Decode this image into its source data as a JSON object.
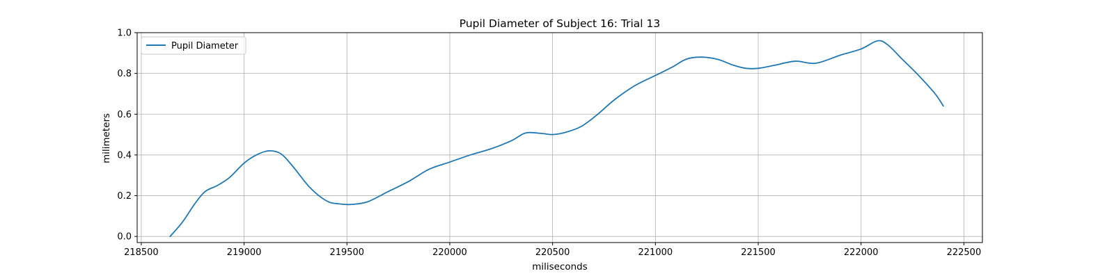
{
  "chart_data": {
    "type": "line",
    "title": "Pupil Diameter of Subject 16: Trial 13",
    "xlabel": "miliseconds",
    "ylabel": "milimeters",
    "xlim": [
      218480,
      222590
    ],
    "ylim": [
      -0.03,
      1.0
    ],
    "xticks": [
      218500,
      219000,
      219500,
      220000,
      220500,
      221000,
      221500,
      222000,
      222500
    ],
    "yticks": [
      0.0,
      0.2,
      0.4,
      0.6,
      0.8,
      1.0
    ],
    "grid": true,
    "legend_position": "top-left",
    "series": [
      {
        "name": "Pupil Diameter",
        "color": "#1f77b4",
        "x": [
          218640,
          218700,
          218760,
          218810,
          218870,
          218930,
          219000,
          219060,
          219120,
          219180,
          219240,
          219320,
          219400,
          219460,
          219520,
          219600,
          219700,
          219800,
          219900,
          220000,
          220100,
          220200,
          220300,
          220370,
          220450,
          220500,
          220560,
          220640,
          220720,
          220800,
          220900,
          221000,
          221080,
          221150,
          221220,
          221300,
          221380,
          221440,
          221500,
          221580,
          221680,
          221780,
          221900,
          222000,
          222080,
          222130,
          222200,
          222280,
          222360,
          222400
        ],
        "y": [
          0.0,
          0.07,
          0.16,
          0.22,
          0.25,
          0.29,
          0.36,
          0.4,
          0.42,
          0.405,
          0.34,
          0.24,
          0.175,
          0.16,
          0.157,
          0.17,
          0.22,
          0.27,
          0.33,
          0.365,
          0.4,
          0.43,
          0.47,
          0.508,
          0.505,
          0.5,
          0.51,
          0.54,
          0.6,
          0.67,
          0.74,
          0.79,
          0.83,
          0.87,
          0.88,
          0.87,
          0.84,
          0.825,
          0.825,
          0.84,
          0.86,
          0.85,
          0.89,
          0.92,
          0.96,
          0.94,
          0.87,
          0.79,
          0.7,
          0.64
        ]
      }
    ]
  }
}
